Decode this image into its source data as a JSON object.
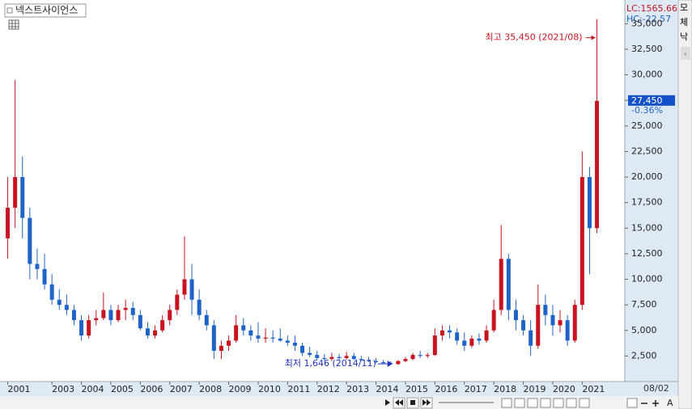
{
  "chart_data": {
    "type": "candlestick",
    "title": "넥스트사이언스",
    "lc_label": "LC:1565.66",
    "hc_label": "HC:-22.57",
    "last_price_label": "27,450",
    "change_label": "-0.36%",
    "max_annotation": "최고 35,450 (2021/08)",
    "min_annotation": "최저 1,646 (2014/11)",
    "last_date_label": "08/02",
    "up_color": "#c8141e",
    "down_color": "#1e64c8",
    "categories": [
      "2001",
      null,
      null,
      null,
      null,
      null,
      "2003",
      null,
      null,
      null,
      "2004",
      null,
      null,
      null,
      "2005",
      null,
      null,
      null,
      "2006",
      null,
      null,
      null,
      "2007",
      null,
      null,
      null,
      "2008",
      null,
      null,
      null,
      "2009",
      null,
      null,
      null,
      "2010",
      null,
      null,
      null,
      "2011",
      null,
      null,
      null,
      "2012",
      null,
      null,
      null,
      "2013",
      null,
      null,
      null,
      "2014",
      null,
      null,
      null,
      "2015",
      null,
      null,
      null,
      "2016",
      null,
      null,
      null,
      "2017",
      null,
      null,
      null,
      "2018",
      null,
      null,
      null,
      "2019",
      null,
      null,
      null,
      "2020",
      null,
      null,
      null,
      "2021",
      null,
      null
    ],
    "open": [
      14000,
      17000,
      20000,
      16000,
      11500,
      11000,
      9500,
      8000,
      7500,
      7000,
      6000,
      4500,
      6000,
      6200,
      7000,
      6000,
      7000,
      7200,
      6500,
      5200,
      4500,
      5000,
      6000,
      7000,
      8500,
      10000,
      8000,
      6500,
      5500,
      3000,
      3500,
      4000,
      5500,
      5000,
      4500,
      4200,
      4300,
      4200,
      4000,
      3800,
      3500,
      2800,
      2600,
      2300,
      2200,
      2400,
      2300,
      2500,
      2200,
      2100,
      2000,
      1900,
      1800,
      1700,
      2000,
      2200,
      2600,
      2500,
      2600,
      4500,
      5000,
      4800,
      4000,
      3500,
      4200,
      4000,
      5000,
      7000,
      12000,
      7000,
      6000,
      5000,
      3500,
      7500,
      6500,
      5500,
      6000,
      4000,
      7500,
      20000,
      15000
    ],
    "high": [
      20000,
      29500,
      22000,
      17000,
      13000,
      12500,
      10500,
      9000,
      8500,
      7500,
      6500,
      6500,
      7000,
      8700,
      7500,
      7500,
      8000,
      7800,
      7000,
      5800,
      5500,
      6500,
      7500,
      9000,
      14200,
      11500,
      9000,
      7000,
      6000,
      4000,
      4500,
      6500,
      6200,
      5500,
      5800,
      5200,
      5000,
      5200,
      4500,
      4500,
      3800,
      3400,
      3000,
      2700,
      2800,
      2700,
      2900,
      2800,
      2500,
      2400,
      2300,
      2100,
      2000,
      2100,
      2400,
      2800,
      3000,
      2800,
      5200,
      5500,
      5500,
      5200,
      4800,
      4500,
      4700,
      5500,
      8000,
      15300,
      12500,
      8000,
      6500,
      6000,
      9500,
      8500,
      7500,
      7000,
      6500,
      8000,
      22500,
      21000,
      35450
    ],
    "low": [
      12000,
      15000,
      14000,
      10000,
      10000,
      9000,
      7500,
      7000,
      6500,
      5500,
      4000,
      4200,
      5500,
      6000,
      5500,
      5800,
      6000,
      6000,
      5000,
      4200,
      4200,
      4800,
      5500,
      6500,
      8000,
      6500,
      6000,
      5000,
      2200,
      2200,
      3000,
      3800,
      4500,
      4000,
      3800,
      3800,
      3800,
      3900,
      3500,
      3000,
      2500,
      2400,
      2100,
      2000,
      2000,
      2100,
      2100,
      2100,
      2000,
      1900,
      1800,
      1700,
      1646,
      1650,
      1900,
      2100,
      2300,
      2300,
      2500,
      4000,
      4200,
      3600,
      3000,
      3300,
      3600,
      3800,
      4800,
      6500,
      6000,
      5000,
      4500,
      2500,
      3200,
      5500,
      4500,
      4800,
      3500,
      3800,
      7000,
      10500,
      14500
    ],
    "close": [
      17000,
      20000,
      16000,
      11500,
      11000,
      9500,
      8000,
      7500,
      7000,
      6000,
      4500,
      6000,
      6200,
      7000,
      6000,
      7000,
      7200,
      6500,
      5200,
      4500,
      5000,
      6000,
      7000,
      8500,
      10000,
      8000,
      6500,
      5500,
      3000,
      3500,
      4000,
      5500,
      5000,
      4500,
      4200,
      4300,
      4200,
      4000,
      3800,
      3500,
      2800,
      2600,
      2300,
      2200,
      2400,
      2300,
      2500,
      2200,
      2100,
      2000,
      1900,
      1800,
      1700,
      2000,
      2200,
      2600,
      2500,
      2600,
      4500,
      5000,
      4800,
      4000,
      3500,
      4200,
      4000,
      5000,
      7000,
      12000,
      7000,
      6000,
      5000,
      3500,
      7500,
      6500,
      5500,
      6000,
      4000,
      7500,
      20000,
      15000,
      27450
    ],
    "ylim": [
      0,
      37000
    ],
    "yticks": [
      {
        "value": 2500,
        "label": "2,500"
      },
      {
        "value": 5000,
        "label": "5,000"
      },
      {
        "value": 7500,
        "label": "7,500"
      },
      {
        "value": 10000,
        "label": "10,000"
      },
      {
        "value": 12500,
        "label": "12,500"
      },
      {
        "value": 15000,
        "label": "15,000"
      },
      {
        "value": 17500,
        "label": "17,500"
      },
      {
        "value": 20000,
        "label": "20,000"
      },
      {
        "value": 22500,
        "label": "22,500"
      },
      {
        "value": 25000,
        "label": "25,000"
      },
      {
        "value": 27500,
        "label": "27,500"
      },
      {
        "value": 30000,
        "label": "30,000"
      },
      {
        "value": 32500,
        "label": "32,500"
      },
      {
        "value": 35000,
        "label": "35,000"
      }
    ],
    "grid": false
  },
  "side_panel": [
    "모",
    "체",
    "낙"
  ],
  "toolbar": {
    "font_button": "A"
  }
}
